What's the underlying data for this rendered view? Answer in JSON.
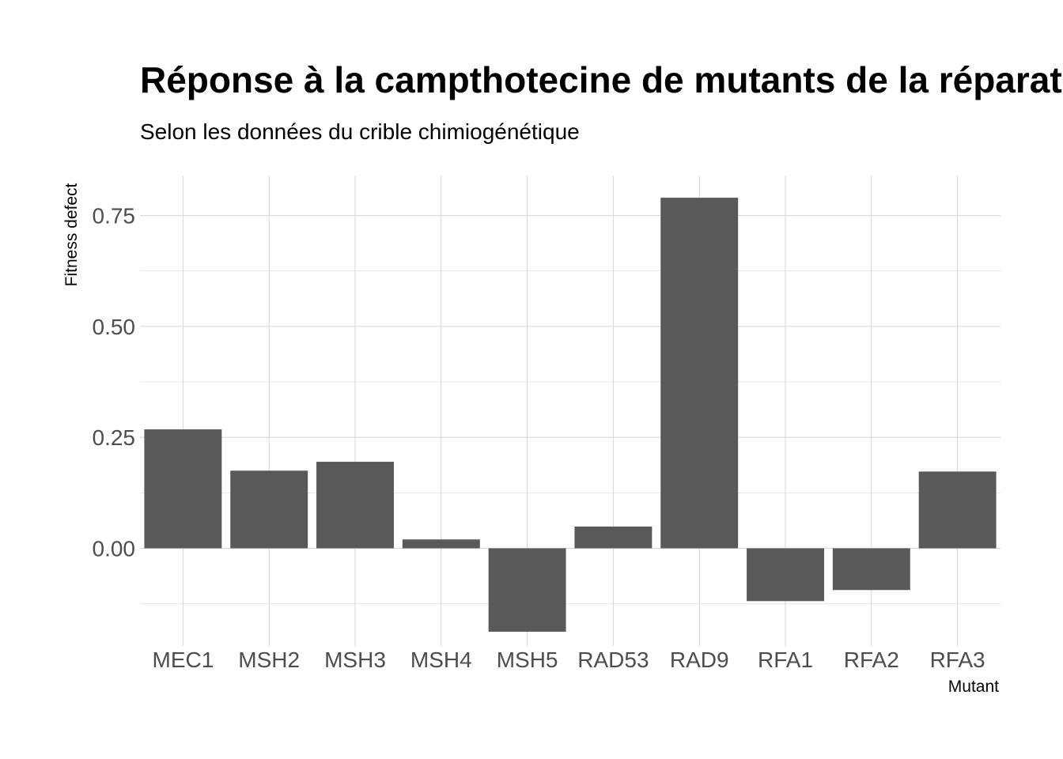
{
  "chart_data": {
    "type": "bar",
    "title": "Réponse à la campthotecine de mutants de la réparation de l'ADN",
    "subtitle": "Selon les données du crible chimiogénétique",
    "xlabel": "Mutant",
    "ylabel": "Fitness defect",
    "categories": [
      "MEC1",
      "MSH2",
      "MSH3",
      "MSH4",
      "MSH5",
      "RAD53",
      "RAD9",
      "RFA1",
      "RFA2",
      "RFA3"
    ],
    "values": [
      0.268,
      0.175,
      0.195,
      0.02,
      -0.188,
      0.049,
      0.79,
      -0.119,
      -0.094,
      0.173
    ],
    "ylim": [
      -0.22,
      0.84
    ],
    "yticks": [
      0.0,
      0.25,
      0.5,
      0.75
    ],
    "ytick_labels": [
      "0.00",
      "0.25",
      "0.50",
      "0.75"
    ],
    "grid": true,
    "bar_color": "#595959"
  }
}
